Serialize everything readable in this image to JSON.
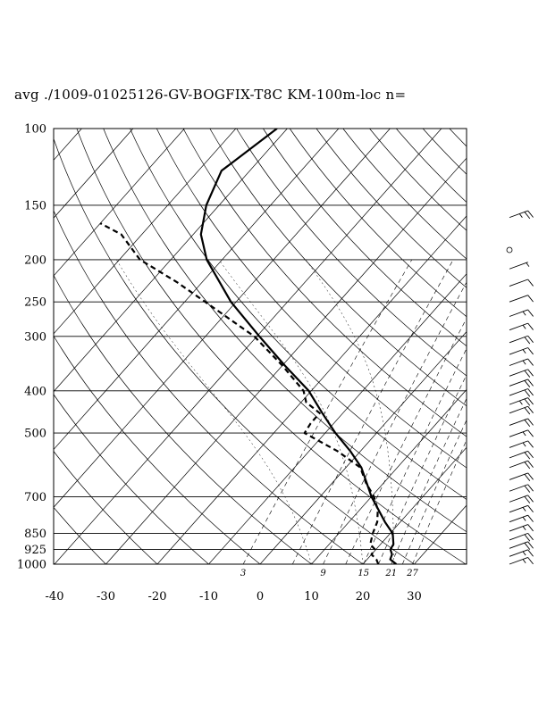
{
  "title": "avg ./1009-01025126-GV-BOGFIX-T8C KM-100m-loc n=",
  "chart_data": {
    "type": "skew-t",
    "pressure_levels": [
      100,
      150,
      200,
      250,
      300,
      400,
      500,
      700,
      850,
      925,
      1000
    ],
    "pressure_tick_labels": [
      "100",
      "150",
      "200",
      "250",
      "300",
      "400",
      "500",
      "700",
      "850",
      "925",
      "1000"
    ],
    "temperature_ticks": [
      -40,
      -30,
      -20,
      -10,
      0,
      10,
      20,
      30
    ],
    "temperature_tick_labels": [
      "-40",
      "-30",
      "-20",
      "-10",
      "0",
      "10",
      "20",
      "30"
    ],
    "mixing_ratio_labels": [
      "3",
      "9",
      "15",
      "21",
      "27"
    ],
    "ylim": [
      1000,
      100
    ],
    "xlim": [
      -40,
      40
    ],
    "grid": true,
    "series": [
      {
        "kind": "temperature",
        "style": "solid",
        "p": [
          1000,
          975,
          950,
          925,
          900,
          850,
          800,
          700,
          600,
          550,
          500,
          450,
          400,
          350,
          300,
          250,
          200,
          175,
          150,
          125,
          100
        ],
        "t": [
          26.5,
          24.5,
          24,
          22.8,
          22.5,
          20.5,
          17,
          10,
          3,
          -2,
          -8,
          -14,
          -20.5,
          -29.5,
          -39.5,
          -51,
          -63,
          -68.5,
          -72.5,
          -75.5,
          -72
        ]
      },
      {
        "kind": "dewpoint",
        "style": "dashed",
        "p": [
          1000,
          975,
          950,
          925,
          900,
          850,
          800,
          750,
          700,
          650,
          600,
          550,
          500,
          475,
          450,
          425,
          400,
          350,
          300,
          250,
          225,
          200,
          175,
          165
        ],
        "td": [
          23,
          21.8,
          20,
          19.8,
          18,
          16.6,
          15.5,
          13.5,
          10.5,
          6.5,
          2.8,
          -4.5,
          -14,
          -14.5,
          -14.5,
          -19,
          -21.5,
          -30,
          -40.5,
          -56,
          -65,
          -76,
          -84,
          -90
        ]
      }
    ],
    "wind_barbs": {
      "p": [
        160,
        190,
        210,
        230,
        250,
        270,
        290,
        310,
        330,
        350,
        370,
        390,
        410,
        430,
        450,
        480,
        510,
        540,
        570,
        600,
        640,
        680,
        720,
        760,
        800,
        840,
        880,
        920,
        960,
        1000
      ],
      "speed_kt": [
        25,
        0,
        5,
        10,
        10,
        15,
        15,
        20,
        15,
        15,
        20,
        20,
        20,
        25,
        20,
        20,
        15,
        15,
        20,
        20,
        20,
        20,
        20,
        15,
        15,
        15,
        20,
        20,
        15,
        15
      ]
    }
  }
}
